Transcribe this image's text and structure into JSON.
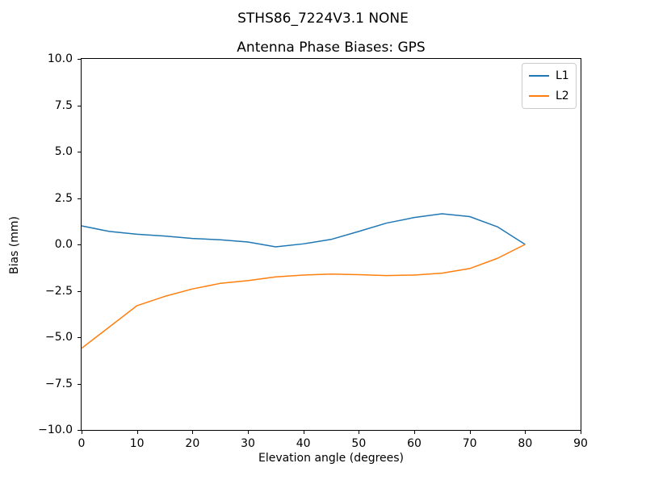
{
  "figure": {
    "suptitle": "STHS86_7224V3.1 NONE",
    "background": "#ffffff",
    "axis_color": "#000000",
    "legend_border_color": "#cccccc"
  },
  "chart_data": {
    "type": "line",
    "suptitle": "STHS86_7224V3.1 NONE",
    "title": "Antenna Phase Biases: GPS",
    "xlabel": "Elevation angle (degrees)",
    "ylabel": "Bias (mm)",
    "xlim": [
      0,
      90
    ],
    "ylim": [
      -10,
      10
    ],
    "xticks": [
      0,
      10,
      20,
      30,
      40,
      50,
      60,
      70,
      80,
      90
    ],
    "yticks": [
      -10.0,
      -7.5,
      -5.0,
      -2.5,
      0.0,
      2.5,
      5.0,
      7.5,
      10.0
    ],
    "grid": false,
    "legend_position": "upper right",
    "line_width": 1.5,
    "x": [
      0,
      5,
      10,
      15,
      20,
      25,
      30,
      35,
      40,
      45,
      50,
      55,
      60,
      65,
      70,
      75,
      80
    ],
    "series": [
      {
        "name": "L1",
        "color": "#1f77b4",
        "values": [
          1.0,
          0.7,
          0.55,
          0.45,
          0.32,
          0.25,
          0.13,
          -0.13,
          0.03,
          0.27,
          0.7,
          1.15,
          1.45,
          1.65,
          1.5,
          0.95,
          0.0
        ]
      },
      {
        "name": "L2",
        "color": "#ff7f0e",
        "values": [
          -5.6,
          -4.45,
          -3.3,
          -2.8,
          -2.4,
          -2.1,
          -1.95,
          -1.75,
          -1.65,
          -1.6,
          -1.63,
          -1.68,
          -1.65,
          -1.55,
          -1.3,
          -0.75,
          0.0
        ]
      }
    ]
  }
}
